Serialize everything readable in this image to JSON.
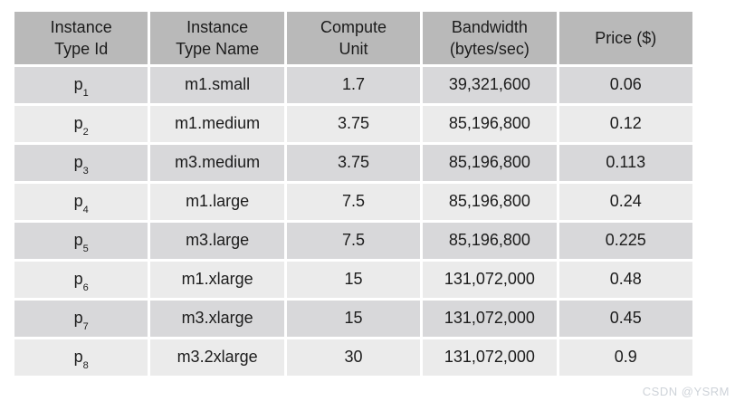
{
  "table": {
    "columns": [
      {
        "label": "Instance\nType Id"
      },
      {
        "label": "Instance\nType Name"
      },
      {
        "label": "Compute\nUnit"
      },
      {
        "label": "Bandwidth\n(bytes/sec)"
      },
      {
        "label": "Price ($)"
      }
    ],
    "rows": [
      {
        "id_base": "p",
        "id_sub": "1",
        "name": "m1.small",
        "compute_unit": "1.7",
        "bandwidth": "39,321,600",
        "price": "0.06"
      },
      {
        "id_base": "p",
        "id_sub": "2",
        "name": "m1.medium",
        "compute_unit": "3.75",
        "bandwidth": "85,196,800",
        "price": "0.12"
      },
      {
        "id_base": "p",
        "id_sub": "3",
        "name": "m3.medium",
        "compute_unit": "3.75",
        "bandwidth": "85,196,800",
        "price": "0.113"
      },
      {
        "id_base": "p",
        "id_sub": "4",
        "name": "m1.large",
        "compute_unit": "7.5",
        "bandwidth": "85,196,800",
        "price": "0.24"
      },
      {
        "id_base": "p",
        "id_sub": "5",
        "name": "m3.large",
        "compute_unit": "7.5",
        "bandwidth": "85,196,800",
        "price": "0.225"
      },
      {
        "id_base": "p",
        "id_sub": "6",
        "name": "m1.xlarge",
        "compute_unit": "15",
        "bandwidth": "131,072,000",
        "price": "0.48"
      },
      {
        "id_base": "p",
        "id_sub": "7",
        "name": "m3.xlarge",
        "compute_unit": "15",
        "bandwidth": "131,072,000",
        "price": "0.45"
      },
      {
        "id_base": "p",
        "id_sub": "8",
        "name": "m3.2xlarge",
        "compute_unit": "30",
        "bandwidth": "131,072,000",
        "price": "0.9"
      }
    ]
  },
  "chart_data": {
    "type": "table",
    "title": "",
    "columns": [
      "Instance Type Id",
      "Instance Type Name",
      "Compute Unit",
      "Bandwidth (bytes/sec)",
      "Price ($)"
    ],
    "rows": [
      [
        "p1",
        "m1.small",
        1.7,
        39321600,
        0.06
      ],
      [
        "p2",
        "m1.medium",
        3.75,
        85196800,
        0.12
      ],
      [
        "p3",
        "m3.medium",
        3.75,
        85196800,
        0.113
      ],
      [
        "p4",
        "m1.large",
        7.5,
        85196800,
        0.24
      ],
      [
        "p5",
        "m3.large",
        7.5,
        85196800,
        0.225
      ],
      [
        "p6",
        "m1.xlarge",
        15,
        131072000,
        0.48
      ],
      [
        "p7",
        "m3.xlarge",
        15,
        131072000,
        0.45
      ],
      [
        "p8",
        "m3.2xlarge",
        30,
        131072000,
        0.9
      ]
    ]
  },
  "watermark": {
    "text": "CSDN @YSRM"
  },
  "colors": {
    "header_bg": "#b9b9b9",
    "row_odd_bg": "#d8d8da",
    "row_even_bg": "#ebebeb",
    "text": "#1c1c1c",
    "watermark": "#ced3d9",
    "separator": "#ffffff"
  }
}
